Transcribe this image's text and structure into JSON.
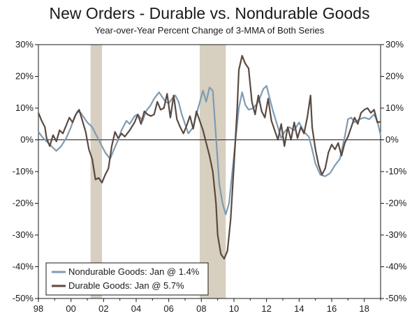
{
  "chart_data": {
    "type": "line",
    "title": "New Orders - Durable vs. Nondurable Goods",
    "subtitle": "Year-over-Year Percent Change of 3-MMA of Both Series",
    "x_range": [
      1998.0,
      2019.0
    ],
    "ylim": [
      -50,
      30
    ],
    "y_ticks": [
      30,
      20,
      10,
      0,
      -10,
      -20,
      -30,
      -40,
      -50
    ],
    "y_tick_labels": [
      "30%",
      "20%",
      "10%",
      "0%",
      "-10%",
      "-20%",
      "-30%",
      "-40%",
      "-50%"
    ],
    "x_ticks": [
      1998,
      2000,
      2002,
      2004,
      2006,
      2008,
      2010,
      2012,
      2014,
      2016,
      2018
    ],
    "x_tick_labels": [
      "98",
      "00",
      "02",
      "04",
      "06",
      "08",
      "10",
      "12",
      "14",
      "16",
      "18"
    ],
    "recessions": [
      [
        2001.2,
        2001.9
      ],
      [
        2007.9,
        2009.5
      ]
    ],
    "legend_placement": "bottom-left",
    "series": [
      {
        "name": "Nondurable Goods: Jan @ 1.4%",
        "color": "#7f9bb3",
        "points": [
          [
            1998.0,
            2.5
          ],
          [
            1998.3,
            0.5
          ],
          [
            1998.6,
            -1.0
          ],
          [
            1998.9,
            -2.5
          ],
          [
            1999.1,
            -3.5
          ],
          [
            1999.4,
            -2.0
          ],
          [
            1999.7,
            0.5
          ],
          [
            2000.0,
            4.0
          ],
          [
            2000.2,
            7.0
          ],
          [
            2000.4,
            9.0
          ],
          [
            2000.6,
            8.5
          ],
          [
            2000.8,
            7.0
          ],
          [
            2001.0,
            5.5
          ],
          [
            2001.3,
            4.0
          ],
          [
            2001.6,
            1.0
          ],
          [
            2001.9,
            -2.0
          ],
          [
            2002.1,
            -4.0
          ],
          [
            2002.4,
            -6.0
          ],
          [
            2002.6,
            -3.5
          ],
          [
            2002.9,
            0.0
          ],
          [
            2003.1,
            3.0
          ],
          [
            2003.4,
            6.0
          ],
          [
            2003.6,
            5.0
          ],
          [
            2003.9,
            7.5
          ],
          [
            2004.1,
            8.0
          ],
          [
            2004.4,
            6.0
          ],
          [
            2004.6,
            9.0
          ],
          [
            2004.9,
            11.0
          ],
          [
            2005.1,
            13.0
          ],
          [
            2005.4,
            15.0
          ],
          [
            2005.6,
            13.5
          ],
          [
            2005.8,
            12.0
          ],
          [
            2006.0,
            11.5
          ],
          [
            2006.2,
            13.0
          ],
          [
            2006.4,
            14.0
          ],
          [
            2006.6,
            12.0
          ],
          [
            2006.8,
            8.0
          ],
          [
            2007.0,
            5.0
          ],
          [
            2007.2,
            2.0
          ],
          [
            2007.5,
            4.0
          ],
          [
            2007.8,
            10.0
          ],
          [
            2008.1,
            15.5
          ],
          [
            2008.3,
            12.0
          ],
          [
            2008.5,
            16.5
          ],
          [
            2008.7,
            15.5
          ],
          [
            2008.9,
            1.0
          ],
          [
            2009.1,
            -14.0
          ],
          [
            2009.3,
            -20.0
          ],
          [
            2009.5,
            -23.5
          ],
          [
            2009.7,
            -20.0
          ],
          [
            2009.9,
            -10.0
          ],
          [
            2010.1,
            0.0
          ],
          [
            2010.3,
            10.0
          ],
          [
            2010.5,
            15.0
          ],
          [
            2010.7,
            11.0
          ],
          [
            2010.9,
            9.5
          ],
          [
            2011.2,
            10.0
          ],
          [
            2011.5,
            12.0
          ],
          [
            2011.8,
            16.0
          ],
          [
            2012.0,
            17.0
          ],
          [
            2012.2,
            13.0
          ],
          [
            2012.4,
            9.0
          ],
          [
            2012.7,
            4.0
          ],
          [
            2012.9,
            0.5
          ],
          [
            2013.1,
            2.5
          ],
          [
            2013.4,
            4.0
          ],
          [
            2013.7,
            3.0
          ],
          [
            2014.0,
            5.5
          ],
          [
            2014.3,
            2.5
          ],
          [
            2014.6,
            1.0
          ],
          [
            2014.8,
            -3.0
          ],
          [
            2015.0,
            -7.5
          ],
          [
            2015.3,
            -11.0
          ],
          [
            2015.6,
            -11.5
          ],
          [
            2015.9,
            -10.5
          ],
          [
            2016.2,
            -8.0
          ],
          [
            2016.5,
            -6.0
          ],
          [
            2016.8,
            1.0
          ],
          [
            2017.0,
            6.5
          ],
          [
            2017.2,
            7.0
          ],
          [
            2017.4,
            5.5
          ],
          [
            2017.7,
            6.5
          ],
          [
            2018.0,
            7.0
          ],
          [
            2018.3,
            6.5
          ],
          [
            2018.6,
            8.0
          ],
          [
            2018.8,
            6.0
          ],
          [
            2019.0,
            1.4
          ]
        ]
      },
      {
        "name": "Durable Goods: Jan @ 5.7%",
        "color": "#5a4a42",
        "points": [
          [
            1998.0,
            8.5
          ],
          [
            1998.2,
            6.0
          ],
          [
            1998.4,
            4.0
          ],
          [
            1998.5,
            0.5
          ],
          [
            1998.7,
            -2.0
          ],
          [
            1998.9,
            1.5
          ],
          [
            1999.1,
            -0.5
          ],
          [
            1999.3,
            3.0
          ],
          [
            1999.5,
            2.0
          ],
          [
            1999.7,
            4.5
          ],
          [
            1999.9,
            7.0
          ],
          [
            2000.1,
            5.5
          ],
          [
            2000.3,
            8.0
          ],
          [
            2000.5,
            9.5
          ],
          [
            2000.7,
            6.0
          ],
          [
            2000.9,
            2.5
          ],
          [
            2001.1,
            -3.0
          ],
          [
            2001.3,
            -6.0
          ],
          [
            2001.5,
            -12.5
          ],
          [
            2001.7,
            -12.0
          ],
          [
            2001.9,
            -13.5
          ],
          [
            2002.1,
            -11.0
          ],
          [
            2002.3,
            -9.0
          ],
          [
            2002.5,
            -2.0
          ],
          [
            2002.7,
            2.5
          ],
          [
            2002.9,
            0.5
          ],
          [
            2003.1,
            2.0
          ],
          [
            2003.3,
            1.0
          ],
          [
            2003.6,
            3.0
          ],
          [
            2003.9,
            5.5
          ],
          [
            2004.1,
            8.0
          ],
          [
            2004.3,
            5.0
          ],
          [
            2004.5,
            9.0
          ],
          [
            2004.7,
            8.0
          ],
          [
            2004.9,
            7.5
          ],
          [
            2005.1,
            8.0
          ],
          [
            2005.3,
            12.0
          ],
          [
            2005.5,
            9.5
          ],
          [
            2005.7,
            10.0
          ],
          [
            2005.9,
            14.5
          ],
          [
            2006.1,
            7.0
          ],
          [
            2006.3,
            14.0
          ],
          [
            2006.5,
            6.5
          ],
          [
            2006.7,
            4.0
          ],
          [
            2006.9,
            2.0
          ],
          [
            2007.1,
            4.5
          ],
          [
            2007.3,
            7.5
          ],
          [
            2007.5,
            3.5
          ],
          [
            2007.7,
            9.0
          ],
          [
            2007.9,
            6.0
          ],
          [
            2008.1,
            3.0
          ],
          [
            2008.3,
            -1.0
          ],
          [
            2008.5,
            -5.0
          ],
          [
            2008.7,
            -10.0
          ],
          [
            2008.9,
            -20.0
          ],
          [
            2009.0,
            -30.0
          ],
          [
            2009.2,
            -36.0
          ],
          [
            2009.4,
            -37.5
          ],
          [
            2009.6,
            -35.0
          ],
          [
            2009.8,
            -25.0
          ],
          [
            2010.0,
            -8.0
          ],
          [
            2010.2,
            10.0
          ],
          [
            2010.3,
            22.0
          ],
          [
            2010.5,
            26.5
          ],
          [
            2010.7,
            24.0
          ],
          [
            2010.9,
            22.5
          ],
          [
            2011.1,
            12.0
          ],
          [
            2011.3,
            8.0
          ],
          [
            2011.5,
            14.0
          ],
          [
            2011.7,
            9.0
          ],
          [
            2011.9,
            7.0
          ],
          [
            2012.1,
            13.0
          ],
          [
            2012.3,
            6.0
          ],
          [
            2012.5,
            3.0
          ],
          [
            2012.7,
            0.0
          ],
          [
            2012.9,
            5.0
          ],
          [
            2013.1,
            -2.0
          ],
          [
            2013.3,
            4.0
          ],
          [
            2013.5,
            0.0
          ],
          [
            2013.7,
            5.5
          ],
          [
            2013.9,
            0.5
          ],
          [
            2014.1,
            4.0
          ],
          [
            2014.3,
            2.0
          ],
          [
            2014.5,
            7.0
          ],
          [
            2014.7,
            14.0
          ],
          [
            2014.8,
            4.0
          ],
          [
            2015.0,
            -3.0
          ],
          [
            2015.2,
            -8.0
          ],
          [
            2015.4,
            -11.0
          ],
          [
            2015.6,
            -9.0
          ],
          [
            2015.8,
            -4.0
          ],
          [
            2016.0,
            -1.5
          ],
          [
            2016.2,
            -3.0
          ],
          [
            2016.4,
            -1.0
          ],
          [
            2016.6,
            -5.0
          ],
          [
            2016.8,
            -1.0
          ],
          [
            2017.0,
            1.0
          ],
          [
            2017.2,
            4.0
          ],
          [
            2017.4,
            7.0
          ],
          [
            2017.6,
            5.0
          ],
          [
            2017.8,
            8.5
          ],
          [
            2018.0,
            9.5
          ],
          [
            2018.2,
            10.0
          ],
          [
            2018.4,
            8.5
          ],
          [
            2018.6,
            9.5
          ],
          [
            2018.8,
            5.5
          ],
          [
            2019.0,
            5.7
          ]
        ]
      }
    ]
  }
}
